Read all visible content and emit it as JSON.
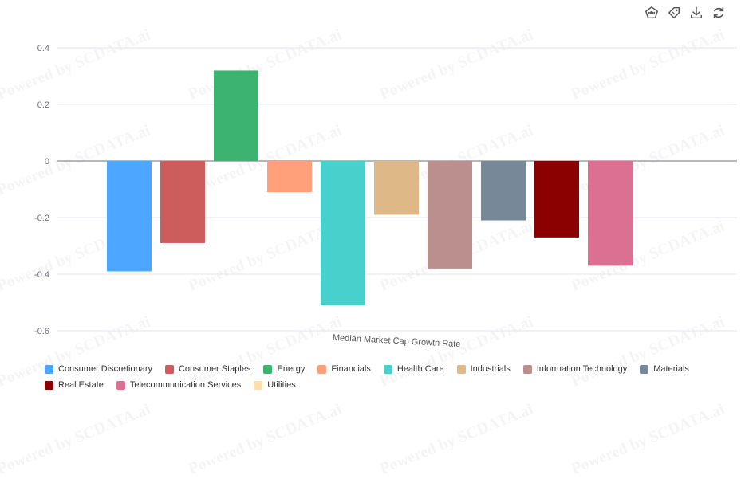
{
  "chart_data": {
    "type": "bar",
    "title": "",
    "xlabel": "Median Market Cap Growth Rate",
    "ylabel": "",
    "ylim": [
      -0.6,
      0.4
    ],
    "yticks": [
      "0.4",
      "0.2",
      "0",
      "-0.2",
      "-0.4",
      "-0.6"
    ],
    "grid": true,
    "legend_position": "bottom",
    "series": [
      {
        "name": "Consumer Discretionary",
        "value": -0.39,
        "color": "#4da6ff"
      },
      {
        "name": "Consumer Staples",
        "value": -0.29,
        "color": "#cd5c5c"
      },
      {
        "name": "Energy",
        "value": 0.32,
        "color": "#3cb371"
      },
      {
        "name": "Financials",
        "value": -0.11,
        "color": "#ffa07a"
      },
      {
        "name": "Health Care",
        "value": -0.51,
        "color": "#48d1cc"
      },
      {
        "name": "Industrials",
        "value": -0.19,
        "color": "#deb887"
      },
      {
        "name": "Information Technology",
        "value": -0.38,
        "color": "#bc8f8f"
      },
      {
        "name": "Materials",
        "value": -0.21,
        "color": "#778899"
      },
      {
        "name": "Real Estate",
        "value": -0.27,
        "color": "#8b0000"
      },
      {
        "name": "Telecommunication Services",
        "value": -0.37,
        "color": "#db7093"
      },
      {
        "name": "Utilities",
        "value": null,
        "color": "#ffdead"
      }
    ]
  },
  "toolbar": {
    "items": [
      {
        "icon": "chart-type-icon"
      },
      {
        "icon": "tag-icon"
      },
      {
        "icon": "download-icon"
      },
      {
        "icon": "refresh-icon"
      }
    ]
  },
  "watermark": "Powered by SCDATA.ai"
}
